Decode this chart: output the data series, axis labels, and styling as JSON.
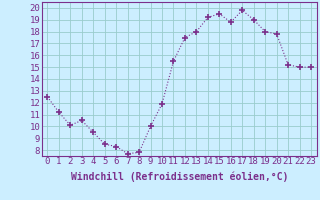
{
  "x": [
    0,
    1,
    2,
    3,
    4,
    5,
    6,
    7,
    8,
    9,
    10,
    11,
    12,
    13,
    14,
    15,
    16,
    17,
    18,
    19,
    20,
    21,
    22,
    23
  ],
  "y": [
    12.5,
    11.2,
    10.1,
    10.5,
    9.5,
    8.5,
    8.3,
    7.7,
    7.8,
    10.0,
    11.9,
    15.5,
    17.5,
    18.0,
    19.2,
    19.5,
    18.8,
    19.8,
    19.0,
    18.0,
    17.8,
    15.2,
    15.0,
    15.0
  ],
  "line_color": "#7B2F8B",
  "marker": "+",
  "marker_size": 4,
  "marker_lw": 1.2,
  "bg_color": "#cceeff",
  "grid_color": "#99cccc",
  "xlabel": "Windchill (Refroidissement éolien,°C)",
  "xlabel_color": "#7B2F8B",
  "xlabel_fontsize": 7,
  "tick_color": "#7B2F8B",
  "tick_fontsize": 6.5,
  "ylim": [
    7.5,
    20.5
  ],
  "yticks": [
    8,
    9,
    10,
    11,
    12,
    13,
    14,
    15,
    16,
    17,
    18,
    19,
    20
  ],
  "xlim": [
    -0.5,
    23.5
  ],
  "xticks": [
    0,
    1,
    2,
    3,
    4,
    5,
    6,
    7,
    8,
    9,
    10,
    11,
    12,
    13,
    14,
    15,
    16,
    17,
    18,
    19,
    20,
    21,
    22,
    23
  ]
}
